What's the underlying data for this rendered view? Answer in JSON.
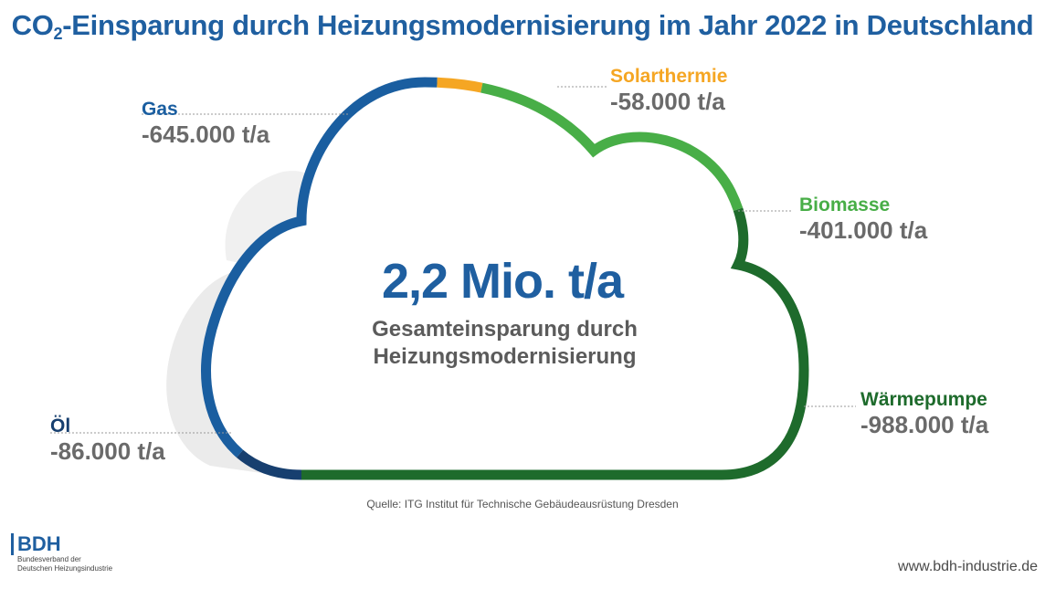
{
  "title": {
    "pre": "CO",
    "sub": "2",
    "post": "-Einsparung durch Heizungsmodernisierung im Jahr 2022 in Deutschland"
  },
  "center": {
    "value": "2,2 Mio. t/a",
    "label_line1": "Gesamteinsparung durch",
    "label_line2": "Heizungsmodernisierung"
  },
  "colors": {
    "title": "#1f5fa0",
    "gas": "#1a5ea0",
    "oel": "#173f6f",
    "solarthermie": "#f5a623",
    "biomasse": "#48ae47",
    "waermepumpe": "#1e6b2c",
    "value_text": "#6a6a6a"
  },
  "chart_data": {
    "type": "pie",
    "unit": "t/a",
    "total_label": "2,2 Mio. t/a",
    "segments": [
      {
        "key": "gas",
        "name": "Gas",
        "value": -645000,
        "label": "-645.000 t/a"
      },
      {
        "key": "solarthermie",
        "name": "Solarthermie",
        "value": -58000,
        "label": "-58.000 t/a"
      },
      {
        "key": "biomasse",
        "name": "Biomasse",
        "value": -401000,
        "label": "-401.000 t/a"
      },
      {
        "key": "waermepumpe",
        "name": "Wärmepumpe",
        "value": -988000,
        "label": "-988.000 t/a"
      },
      {
        "key": "oel",
        "name": "Öl",
        "value": -86000,
        "label": "-86.000 t/a"
      }
    ]
  },
  "source": "Quelle: ITG Institut für Technische Gebäudeausrüstung Dresden",
  "logo": {
    "abbr": "BDH",
    "name_line1": "Bundesverband der",
    "name_line2": "Deutschen Heizungsindustrie"
  },
  "website": "www.bdh-industrie.de"
}
